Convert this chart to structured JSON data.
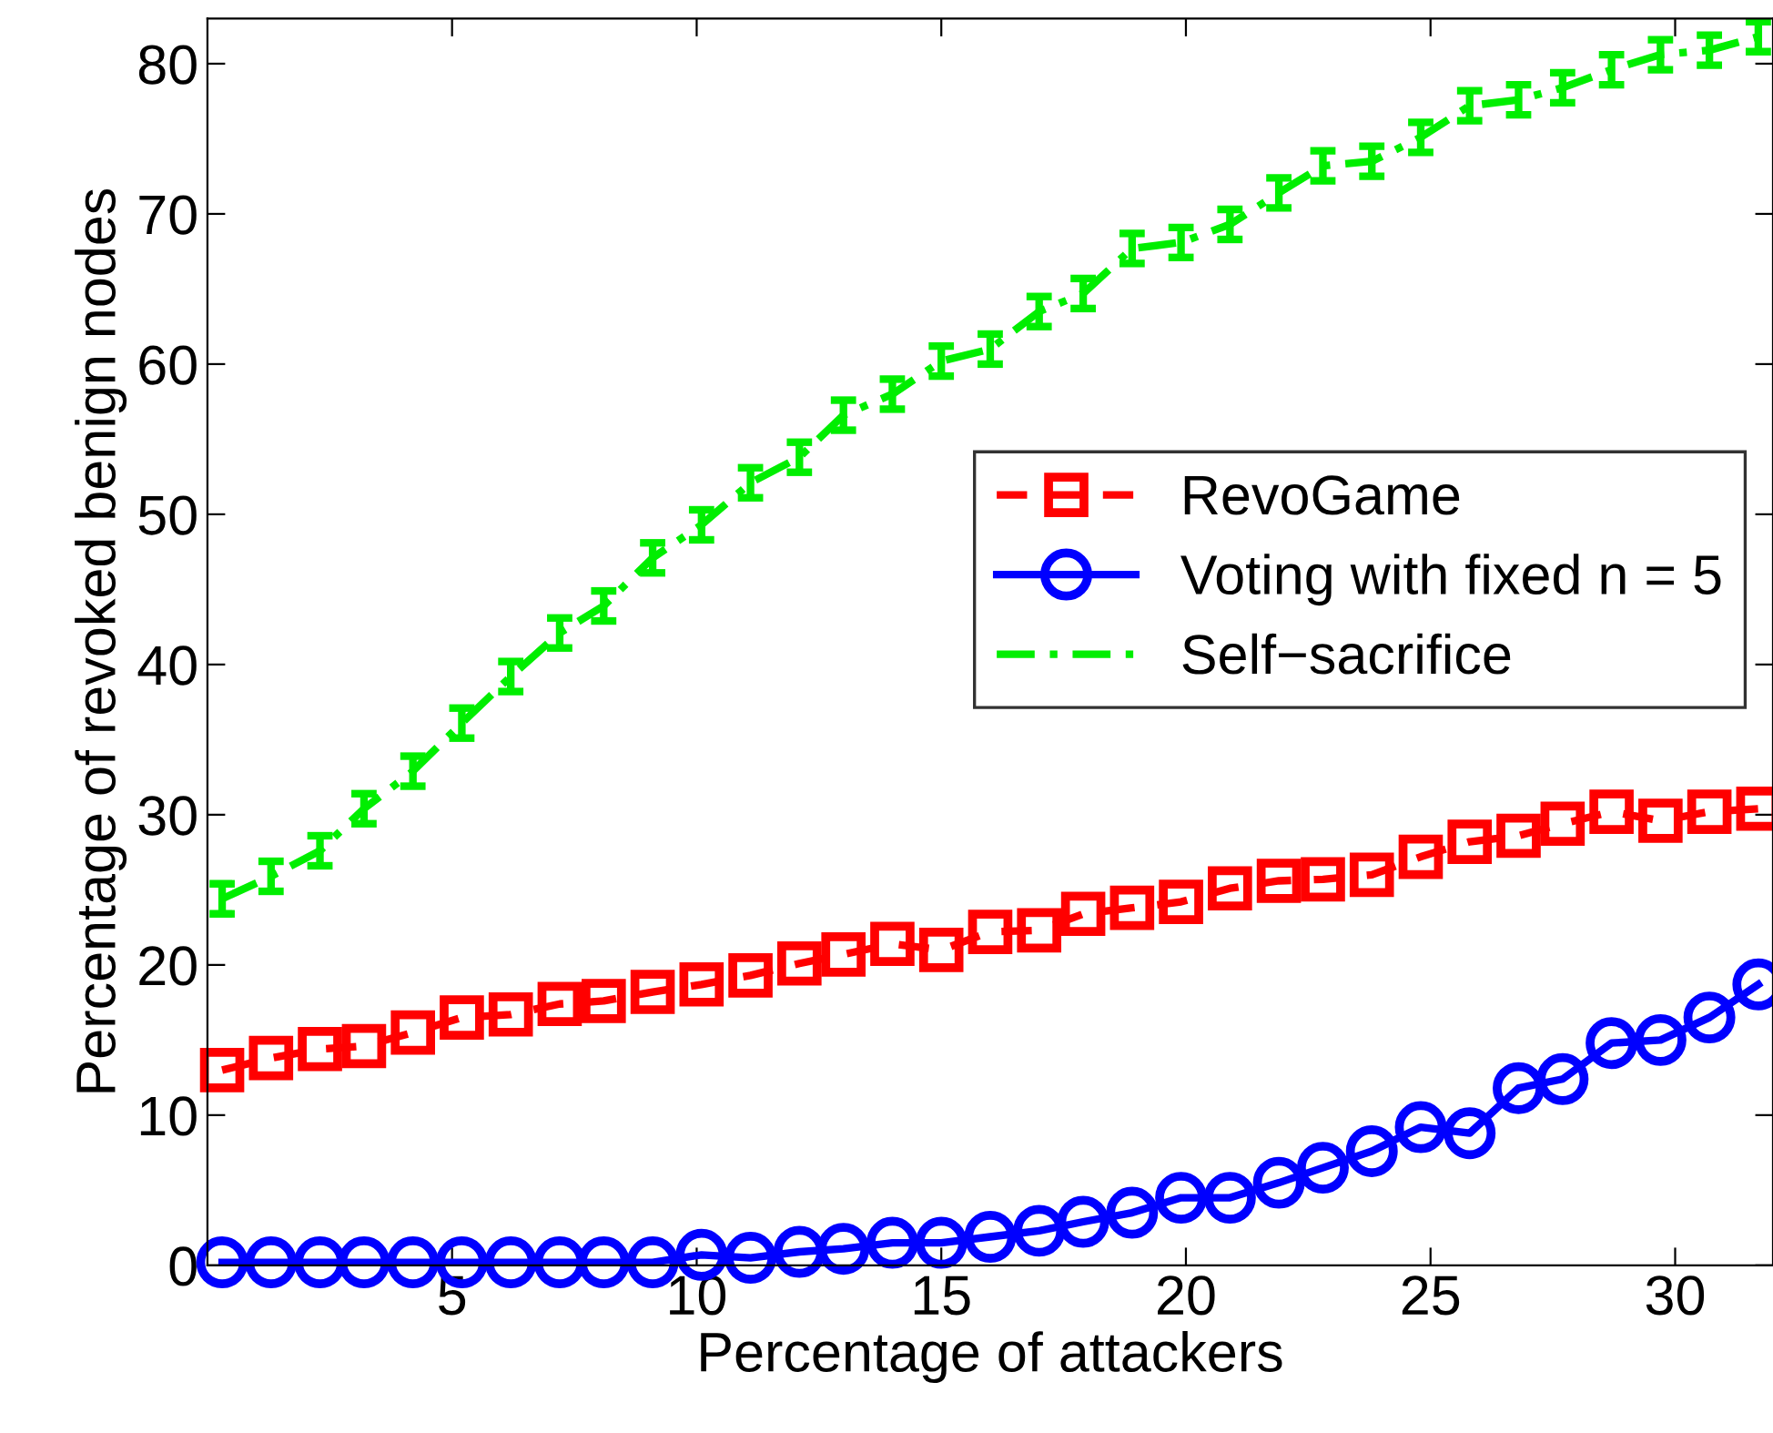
{
  "chart_data": {
    "type": "line",
    "xlabel": "Percentage of attackers",
    "ylabel": "Percentage of revoked benign nodes",
    "x": [
      0.3,
      1.3,
      2.3,
      3.2,
      4.2,
      5.2,
      6.2,
      7.2,
      8.1,
      9.1,
      10.1,
      11.1,
      12.1,
      13.0,
      14.0,
      15.0,
      16.0,
      17.0,
      17.9,
      18.9,
      19.9,
      20.9,
      21.9,
      22.8,
      23.8,
      24.8,
      25.8,
      26.8,
      27.7,
      28.7,
      29.7,
      30.7,
      31.7
    ],
    "series": [
      {
        "name": "RevoGame",
        "color": "#ff0000",
        "marker": "square",
        "line_style": "dashed",
        "values": [
          13.0,
          13.8,
          14.4,
          14.6,
          15.5,
          16.5,
          16.7,
          17.4,
          17.6,
          18.2,
          18.7,
          19.3,
          20.1,
          20.7,
          21.4,
          21.0,
          22.2,
          22.3,
          23.4,
          23.8,
          24.2,
          25.1,
          25.6,
          25.7,
          26.0,
          27.2,
          28.2,
          28.6,
          29.4,
          30.2,
          29.6,
          30.2,
          30.4
        ]
      },
      {
        "name": "Voting with fixed n = 5",
        "color": "#0000ff",
        "marker": "circle",
        "line_style": "solid",
        "values": [
          0.2,
          0.2,
          0.2,
          0.2,
          0.2,
          0.2,
          0.2,
          0.2,
          0.2,
          0.2,
          0.7,
          0.5,
          0.9,
          1.1,
          1.5,
          1.5,
          1.9,
          2.3,
          2.9,
          3.5,
          4.5,
          4.5,
          5.5,
          6.5,
          7.6,
          9.2,
          8.8,
          11.8,
          12.4,
          14.8,
          15.0,
          16.5,
          18.7
        ]
      },
      {
        "name": "Self−sacrifice",
        "color": "#00ee00",
        "marker": "none",
        "line_style": "dashdot",
        "values": [
          24.4,
          25.9,
          27.6,
          30.4,
          32.9,
          36.1,
          39.2,
          42.1,
          43.9,
          47.1,
          49.3,
          52.1,
          53.8,
          56.6,
          58.0,
          60.2,
          61.0,
          63.5,
          64.7,
          67.7,
          68.1,
          69.3,
          71.4,
          73.2,
          73.5,
          75.1,
          77.2,
          77.6,
          78.4,
          79.6,
          80.6,
          80.9,
          81.8
        ],
        "errors": [
          1,
          1,
          1,
          1,
          1,
          1,
          1,
          1,
          1,
          1,
          1,
          1,
          1,
          1,
          1,
          1,
          1,
          1,
          1,
          1,
          1,
          1,
          1,
          1,
          1,
          1,
          1,
          1,
          1,
          1,
          1,
          1,
          1
        ]
      }
    ],
    "xlim": [
      0,
      32
    ],
    "xticks": [
      5,
      10,
      15,
      20,
      25,
      30
    ],
    "ylim": [
      0,
      83
    ],
    "yticks": [
      0,
      10,
      20,
      30,
      40,
      50,
      60,
      70,
      80
    ],
    "grid": false,
    "legend": "center right"
  }
}
